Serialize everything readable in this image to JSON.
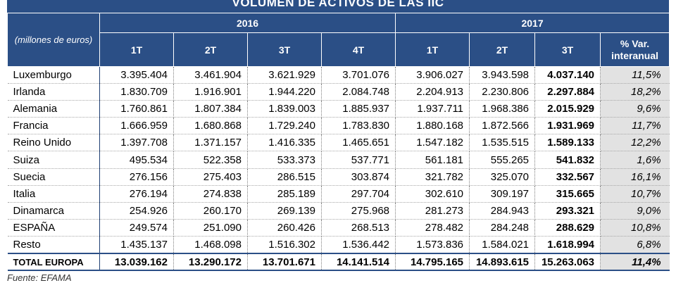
{
  "title": "VOLUMEN DE ACTIVOS DE LAS IIC",
  "unit_note": "(millones de euros)",
  "years": [
    "2016",
    "2017"
  ],
  "quarters": [
    "1T",
    "2T",
    "3T",
    "4T",
    "1T",
    "2T",
    "3T"
  ],
  "var_header": "% Var. interanual",
  "rows": [
    {
      "country": "Luxemburgo",
      "values": [
        "3.395.404",
        "3.461.904",
        "3.621.929",
        "3.701.076",
        "3.906.027",
        "3.943.598",
        "4.037.140"
      ],
      "var": "11,5%"
    },
    {
      "country": "Irlanda",
      "values": [
        "1.830.709",
        "1.916.901",
        "1.944.220",
        "2.084.748",
        "2.204.913",
        "2.230.806",
        "2.297.884"
      ],
      "var": "18,2%"
    },
    {
      "country": "Alemania",
      "values": [
        "1.760.861",
        "1.807.384",
        "1.839.003",
        "1.885.937",
        "1.937.711",
        "1.968.386",
        "2.015.929"
      ],
      "var": "9,6%"
    },
    {
      "country": "Francia",
      "values": [
        "1.666.959",
        "1.680.868",
        "1.729.240",
        "1.783.830",
        "1.880.168",
        "1.872.566",
        "1.931.969"
      ],
      "var": "11,7%"
    },
    {
      "country": "Reino Unido",
      "values": [
        "1.397.708",
        "1.371.157",
        "1.416.335",
        "1.465.651",
        "1.547.182",
        "1.535.515",
        "1.589.133"
      ],
      "var": "12,2%"
    },
    {
      "country": "Suiza",
      "values": [
        "495.534",
        "522.358",
        "533.373",
        "537.771",
        "561.181",
        "555.265",
        "541.832"
      ],
      "var": "1,6%"
    },
    {
      "country": "Suecia",
      "values": [
        "276.156",
        "275.403",
        "286.515",
        "303.874",
        "321.782",
        "325.070",
        "332.567"
      ],
      "var": "16,1%"
    },
    {
      "country": "Italia",
      "values": [
        "276.194",
        "274.838",
        "285.189",
        "297.704",
        "302.610",
        "309.197",
        "315.665"
      ],
      "var": "10,7%"
    },
    {
      "country": "Dinamarca",
      "values": [
        "254.926",
        "260.170",
        "269.139",
        "275.968",
        "281.273",
        "284.943",
        "293.321"
      ],
      "var": "9,0%"
    },
    {
      "country": "ESPAÑA",
      "values": [
        "249.574",
        "251.090",
        "260.426",
        "268.513",
        "278.482",
        "284.248",
        "288.629"
      ],
      "var": "10,8%"
    },
    {
      "country": "Resto",
      "values": [
        "1.435.137",
        "1.468.098",
        "1.516.302",
        "1.536.442",
        "1.573.836",
        "1.584.021",
        "1.618.994"
      ],
      "var": "6,8%"
    }
  ],
  "total": {
    "country": "TOTAL EUROPA",
    "values": [
      "13.039.162",
      "13.290.172",
      "13.701.671",
      "14.141.514",
      "14.795.165",
      "14.893.615",
      "15.263.063"
    ],
    "var": "11,4%"
  },
  "source": "Fuente: EFAMA",
  "colors": {
    "header_bg": "#2b4f86",
    "var_bg": "#e2e2e2"
  }
}
